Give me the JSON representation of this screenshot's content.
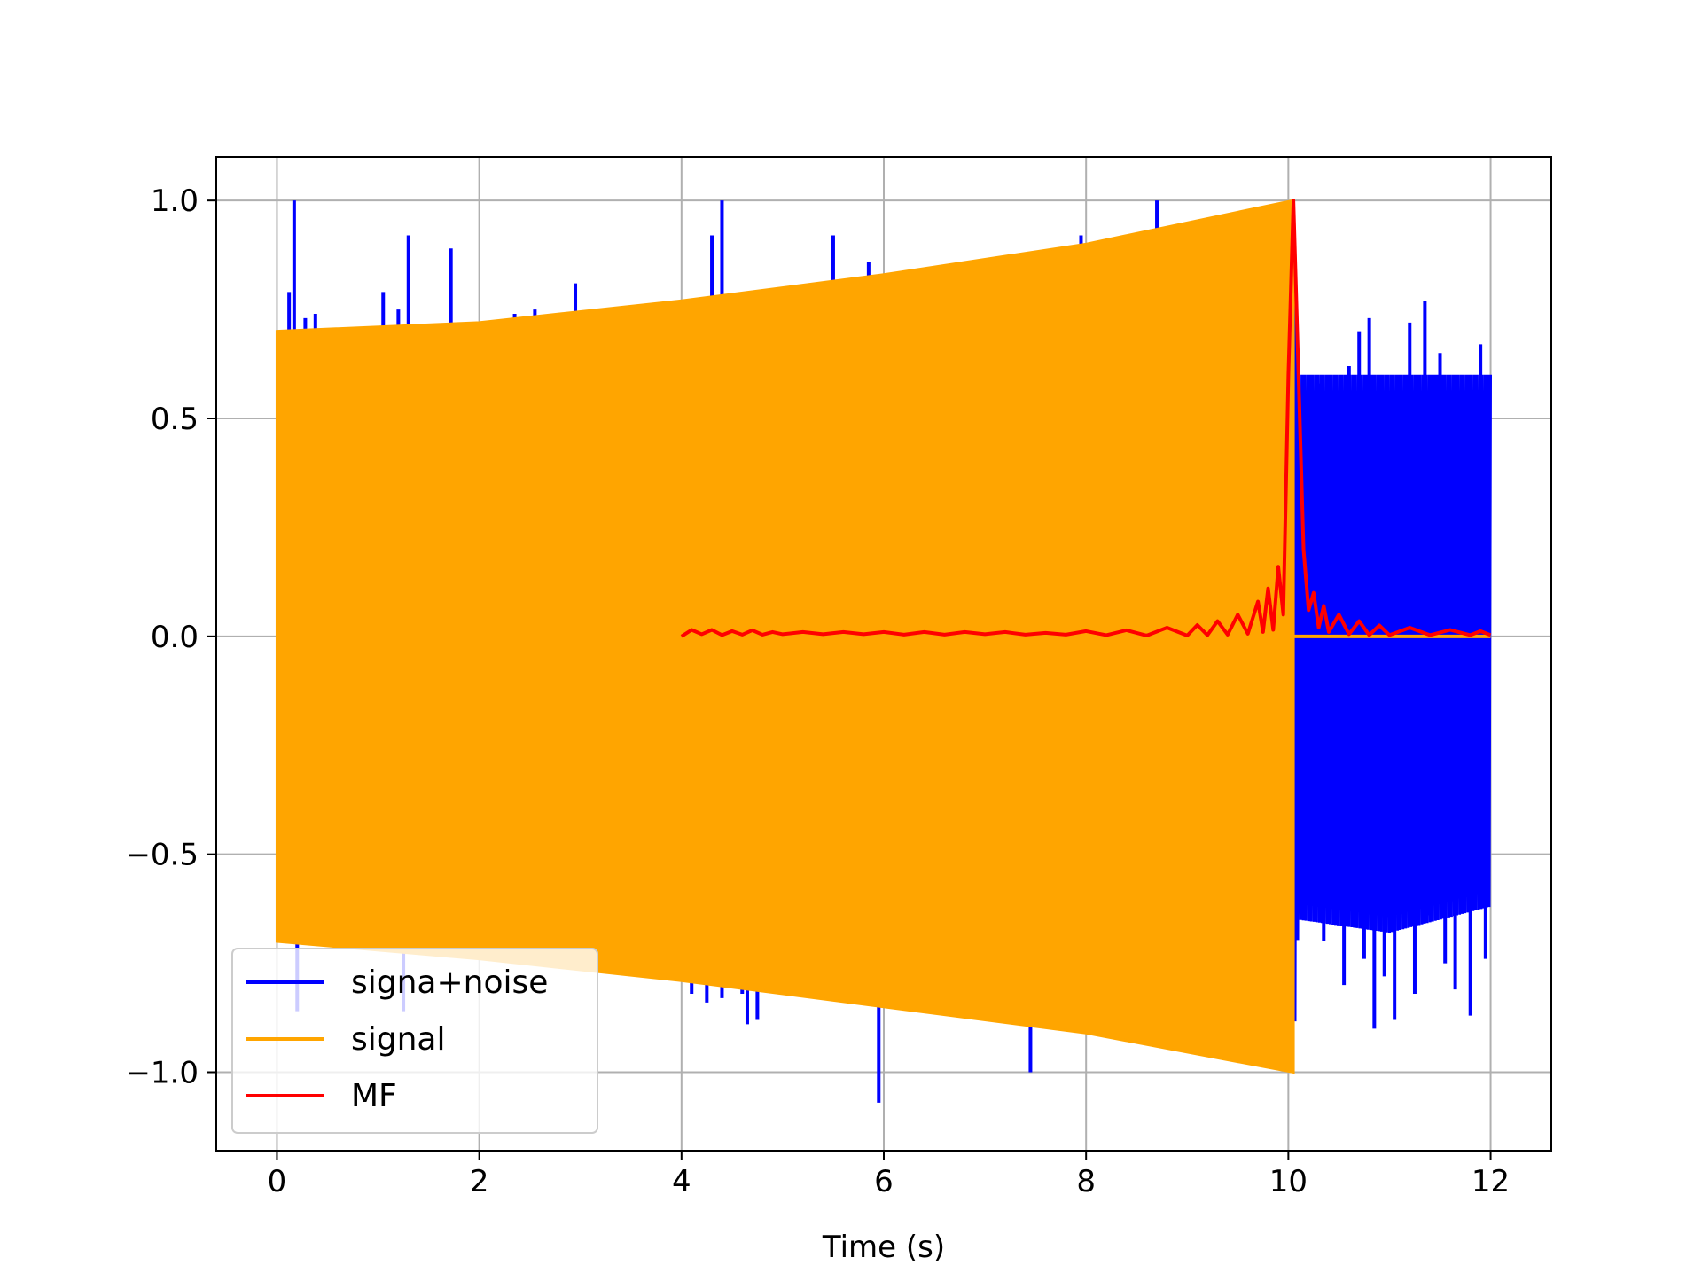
{
  "chart_data": {
    "type": "line",
    "xlabel": "Time (s)",
    "ylabel": "",
    "xlim": [
      -0.6,
      12.6
    ],
    "ylim": [
      -1.18,
      1.1
    ],
    "xticks": [
      0,
      2,
      4,
      6,
      8,
      10,
      12
    ],
    "xtick_labels": [
      "0",
      "2",
      "4",
      "6",
      "8",
      "10",
      "12"
    ],
    "yticks": [
      -1.0,
      -0.5,
      0.0,
      0.5,
      1.0
    ],
    "ytick_labels": [
      "−1.0",
      "−0.5",
      "0.0",
      "0.5",
      "1.0"
    ],
    "grid": true,
    "legend_position": "lower-left",
    "series": [
      {
        "name": "signa+noise",
        "color": "#0000ff",
        "style": "dense-oscillation",
        "upper_envelope": [
          [
            0,
            0.7
          ],
          [
            2,
            0.72
          ],
          [
            4,
            0.77
          ],
          [
            6,
            0.83
          ],
          [
            8,
            0.9
          ],
          [
            10.05,
            1.0
          ],
          [
            10.1,
            0.6
          ],
          [
            11,
            0.6
          ],
          [
            12,
            0.6
          ]
        ],
        "lower_envelope": [
          [
            0,
            -0.7
          ],
          [
            2,
            -0.74
          ],
          [
            4,
            -0.79
          ],
          [
            6,
            -0.85
          ],
          [
            8,
            -0.91
          ],
          [
            10.05,
            -1.0
          ],
          [
            10.1,
            -0.65
          ],
          [
            11,
            -0.68
          ],
          [
            12,
            -0.62
          ]
        ],
        "spikes": [
          [
            0.12,
            0.79
          ],
          [
            0.17,
            1.0
          ],
          [
            0.28,
            0.73
          ],
          [
            0.2,
            -0.86
          ],
          [
            0.38,
            0.74
          ],
          [
            1.05,
            0.79
          ],
          [
            1.2,
            0.75
          ],
          [
            1.3,
            0.92
          ],
          [
            1.72,
            0.89
          ],
          [
            1.25,
            -0.86
          ],
          [
            2.35,
            0.74
          ],
          [
            2.55,
            0.75
          ],
          [
            2.95,
            0.81
          ],
          [
            4.1,
            -0.82
          ],
          [
            4.25,
            -0.84
          ],
          [
            4.4,
            -0.83
          ],
          [
            4.3,
            0.92
          ],
          [
            4.4,
            1.0
          ],
          [
            4.6,
            -0.82
          ],
          [
            4.65,
            -0.89
          ],
          [
            4.75,
            -0.88
          ],
          [
            4.95,
            0.8
          ],
          [
            5.45,
            -0.82
          ],
          [
            5.5,
            0.92
          ],
          [
            5.85,
            0.86
          ],
          [
            5.95,
            -1.07
          ],
          [
            6.25,
            -0.84
          ],
          [
            6.75,
            -0.85
          ],
          [
            7.45,
            -1.0
          ],
          [
            7.95,
            0.92
          ],
          [
            8.7,
            1.0
          ],
          [
            8.3,
            -0.88
          ],
          [
            10.3,
            0.58
          ],
          [
            10.45,
            0.55
          ],
          [
            10.6,
            0.62
          ],
          [
            10.7,
            0.7
          ],
          [
            10.8,
            0.73
          ],
          [
            11.0,
            0.54
          ],
          [
            11.2,
            0.72
          ],
          [
            11.35,
            0.77
          ],
          [
            11.5,
            0.65
          ],
          [
            11.75,
            0.55
          ],
          [
            11.9,
            0.67
          ],
          [
            10.35,
            -0.7
          ],
          [
            10.55,
            -0.8
          ],
          [
            10.65,
            -0.62
          ],
          [
            10.75,
            -0.74
          ],
          [
            10.85,
            -0.9
          ],
          [
            10.95,
            -0.78
          ],
          [
            11.05,
            -0.88
          ],
          [
            11.25,
            -0.82
          ],
          [
            11.4,
            -0.64
          ],
          [
            11.55,
            -0.75
          ],
          [
            11.65,
            -0.81
          ],
          [
            11.8,
            -0.87
          ],
          [
            11.95,
            -0.74
          ]
        ]
      },
      {
        "name": "signal",
        "color": "#ffa500",
        "style": "chirp-filled-envelope",
        "upper_envelope": [
          [
            0,
            0.7
          ],
          [
            2,
            0.72
          ],
          [
            4,
            0.77
          ],
          [
            6,
            0.83
          ],
          [
            8,
            0.9
          ],
          [
            10.05,
            1.0
          ]
        ],
        "lower_envelope": [
          [
            0,
            -0.7
          ],
          [
            2,
            -0.74
          ],
          [
            4,
            -0.79
          ],
          [
            6,
            -0.85
          ],
          [
            8,
            -0.91
          ],
          [
            10.05,
            -1.0
          ]
        ],
        "flat_after": [
          10.05,
          12.0,
          0.0
        ]
      },
      {
        "name": "MF",
        "color": "#ff0000",
        "style": "line",
        "points": [
          [
            4.0,
            0.0
          ],
          [
            4.1,
            0.015
          ],
          [
            4.2,
            0.005
          ],
          [
            4.3,
            0.015
          ],
          [
            4.4,
            0.003
          ],
          [
            4.5,
            0.012
          ],
          [
            4.6,
            0.004
          ],
          [
            4.7,
            0.014
          ],
          [
            4.8,
            0.004
          ],
          [
            4.9,
            0.01
          ],
          [
            5.0,
            0.005
          ],
          [
            5.2,
            0.01
          ],
          [
            5.4,
            0.005
          ],
          [
            5.6,
            0.01
          ],
          [
            5.8,
            0.005
          ],
          [
            6.0,
            0.01
          ],
          [
            6.2,
            0.004
          ],
          [
            6.4,
            0.01
          ],
          [
            6.6,
            0.004
          ],
          [
            6.8,
            0.01
          ],
          [
            7.0,
            0.005
          ],
          [
            7.2,
            0.01
          ],
          [
            7.4,
            0.004
          ],
          [
            7.6,
            0.008
          ],
          [
            7.8,
            0.004
          ],
          [
            8.0,
            0.012
          ],
          [
            8.2,
            0.003
          ],
          [
            8.4,
            0.014
          ],
          [
            8.6,
            0.002
          ],
          [
            8.8,
            0.02
          ],
          [
            9.0,
            0.002
          ],
          [
            9.1,
            0.026
          ],
          [
            9.2,
            0.003
          ],
          [
            9.3,
            0.035
          ],
          [
            9.4,
            0.004
          ],
          [
            9.5,
            0.05
          ],
          [
            9.6,
            0.006
          ],
          [
            9.7,
            0.08
          ],
          [
            9.75,
            0.01
          ],
          [
            9.8,
            0.11
          ],
          [
            9.85,
            0.015
          ],
          [
            9.9,
            0.16
          ],
          [
            9.95,
            0.05
          ],
          [
            10.0,
            0.6
          ],
          [
            10.05,
            1.0
          ],
          [
            10.1,
            0.6
          ],
          [
            10.15,
            0.2
          ],
          [
            10.2,
            0.06
          ],
          [
            10.25,
            0.1
          ],
          [
            10.3,
            0.02
          ],
          [
            10.35,
            0.07
          ],
          [
            10.4,
            0.01
          ],
          [
            10.5,
            0.05
          ],
          [
            10.6,
            0.005
          ],
          [
            10.7,
            0.035
          ],
          [
            10.8,
            0.003
          ],
          [
            10.9,
            0.025
          ],
          [
            11.0,
            0.003
          ],
          [
            11.2,
            0.02
          ],
          [
            11.4,
            0.003
          ],
          [
            11.6,
            0.015
          ],
          [
            11.8,
            0.003
          ],
          [
            11.9,
            0.012
          ],
          [
            12.0,
            0.003
          ]
        ]
      }
    ]
  }
}
